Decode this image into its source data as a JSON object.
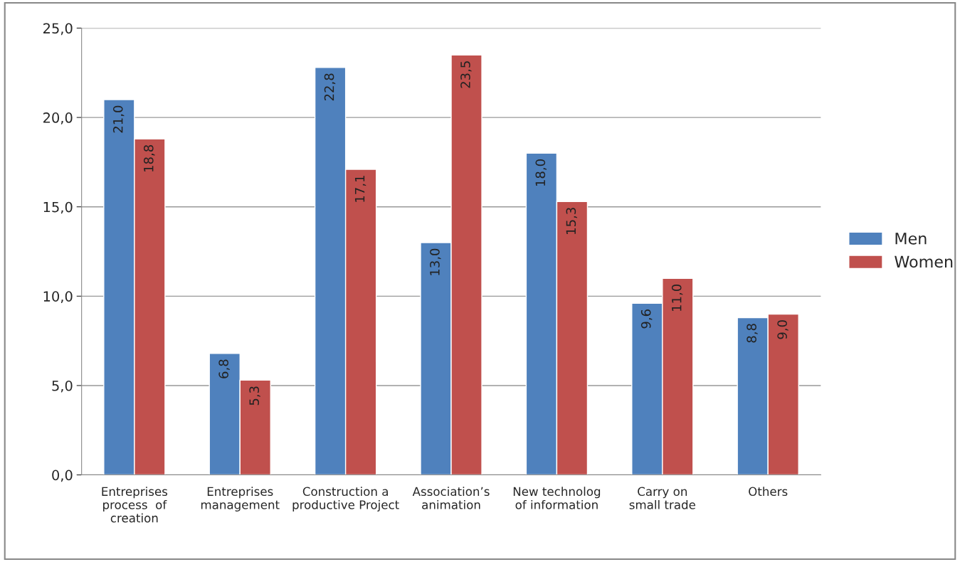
{
  "chart_data": {
    "type": "bar",
    "categories": [
      "Entreprises\nprocess  of\ncreation",
      "Entreprises\nmanagement",
      "Construction a\nproductive Project",
      "Association’s\nanimation",
      "New technolog\nof information",
      "Carry on\nsmall trade",
      "Others"
    ],
    "series": [
      {
        "name": "Men",
        "color": "#4f81bd",
        "values": [
          21.0,
          6.8,
          22.8,
          13.0,
          18.0,
          9.6,
          8.8
        ],
        "value_labels": [
          "21,0",
          "6,8",
          "22,8",
          "13,0",
          "18,0",
          "9,6",
          "8,8"
        ]
      },
      {
        "name": "Women",
        "color": "#c0504d",
        "values": [
          18.8,
          5.3,
          17.1,
          23.5,
          15.3,
          11.0,
          9.0
        ],
        "value_labels": [
          "18,8",
          "5,3",
          "17,1",
          "23,5",
          "15,3",
          "11,0",
          "9,0"
        ]
      }
    ],
    "ylim": [
      0,
      25
    ],
    "yticks": [
      {
        "value": 0,
        "label": "0,0"
      },
      {
        "value": 5,
        "label": "5,0"
      },
      {
        "value": 10,
        "label": "10,0"
      },
      {
        "value": 15,
        "label": "15,0"
      },
      {
        "value": 20,
        "label": "20,0"
      },
      {
        "value": 25,
        "label": "25,0"
      }
    ],
    "grid": "y",
    "legend": "right"
  }
}
